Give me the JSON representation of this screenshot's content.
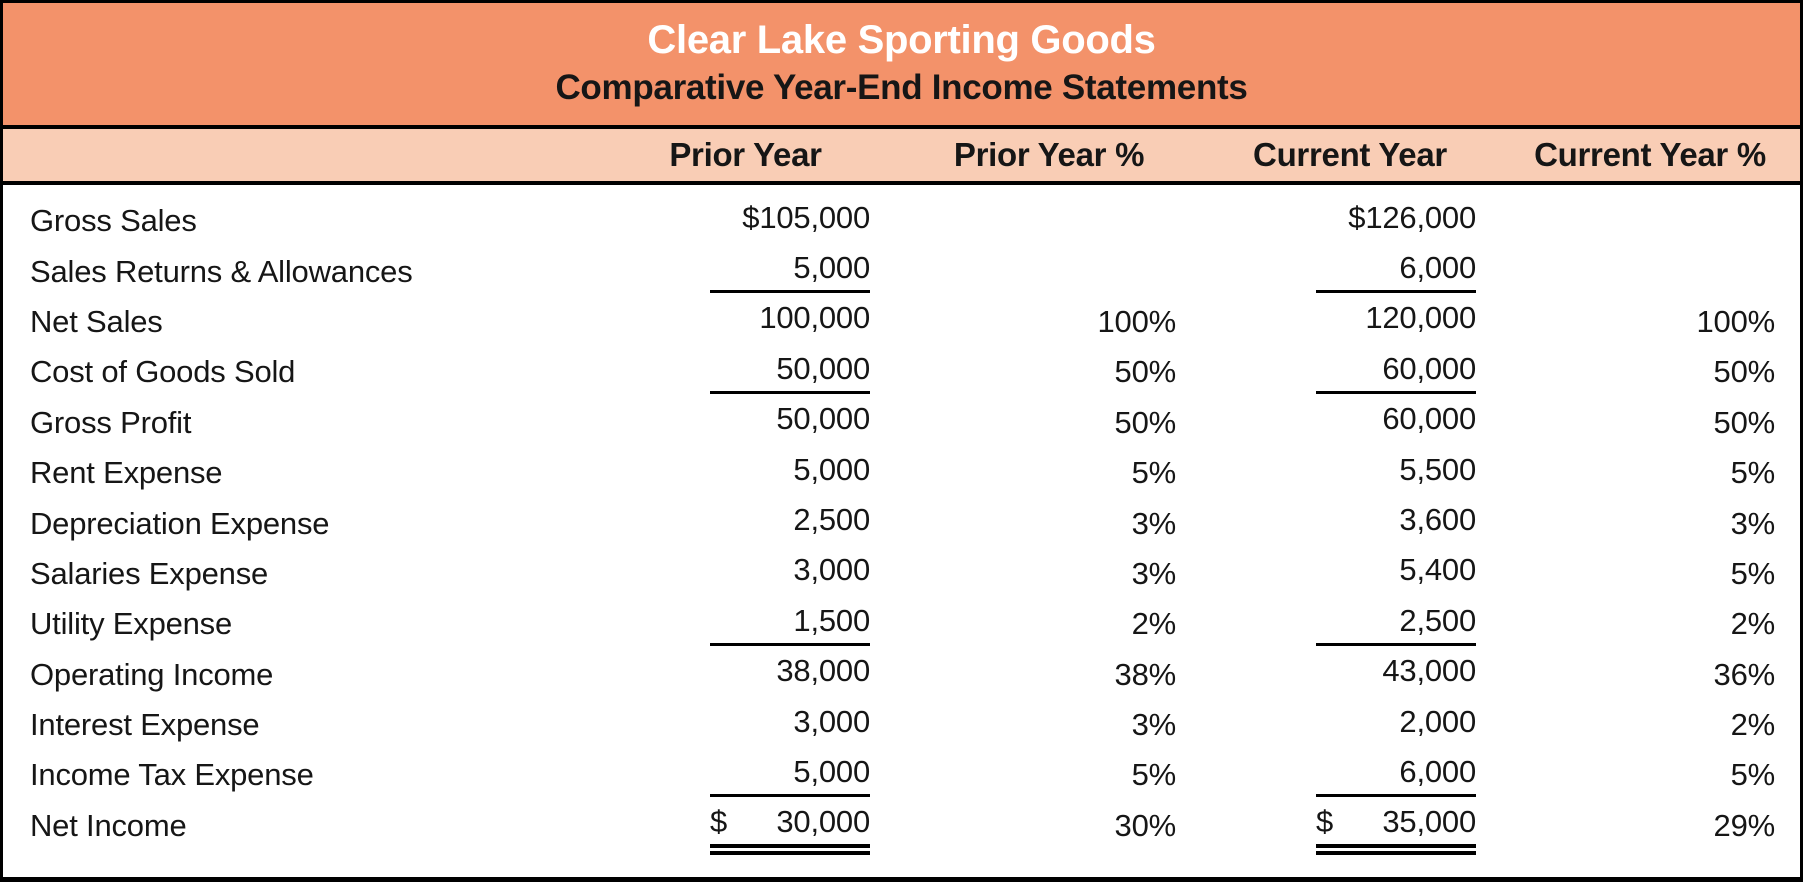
{
  "title": "Clear Lake Sporting Goods",
  "subtitle": "Comparative Year-End Income Statements",
  "columns": {
    "prior": "Prior Year",
    "prior_pct": "Prior Year %",
    "current": "Current Year",
    "current_pct": "Current Year %"
  },
  "colors": {
    "title_band_bg": "#F3926A",
    "column_band_bg": "#F9CDB5",
    "title_text": "#FFFFFF",
    "body_text": "#161616",
    "border": "#000000",
    "body_bg": "#FFFFFF"
  },
  "rows": [
    {
      "label": "Gross Sales",
      "prior_dollar": "",
      "prior": "$105,000",
      "prior_pct": "",
      "current_dollar": "",
      "current": "$126,000",
      "current_pct": "",
      "underline": "none"
    },
    {
      "label": "Sales Returns & Allowances",
      "prior_dollar": "",
      "prior": "5,000",
      "prior_pct": "",
      "current_dollar": "",
      "current": "6,000",
      "current_pct": "",
      "underline": "single"
    },
    {
      "label": "Net Sales",
      "prior_dollar": "",
      "prior": "100,000",
      "prior_pct": "100%",
      "current_dollar": "",
      "current": "120,000",
      "current_pct": "100%",
      "underline": "none"
    },
    {
      "label": "Cost of Goods Sold",
      "prior_dollar": "",
      "prior": "50,000",
      "prior_pct": "50%",
      "current_dollar": "",
      "current": "60,000",
      "current_pct": "50%",
      "underline": "single"
    },
    {
      "label": "Gross Profit",
      "prior_dollar": "",
      "prior": "50,000",
      "prior_pct": "50%",
      "current_dollar": "",
      "current": "60,000",
      "current_pct": "50%",
      "underline": "none"
    },
    {
      "label": "Rent Expense",
      "prior_dollar": "",
      "prior": "5,000",
      "prior_pct": "5%",
      "current_dollar": "",
      "current": "5,500",
      "current_pct": "5%",
      "underline": "none"
    },
    {
      "label": "Depreciation Expense",
      "prior_dollar": "",
      "prior": "2,500",
      "prior_pct": "3%",
      "current_dollar": "",
      "current": "3,600",
      "current_pct": "3%",
      "underline": "none"
    },
    {
      "label": "Salaries Expense",
      "prior_dollar": "",
      "prior": "3,000",
      "prior_pct": "3%",
      "current_dollar": "",
      "current": "5,400",
      "current_pct": "5%",
      "underline": "none"
    },
    {
      "label": "Utility Expense",
      "prior_dollar": "",
      "prior": "1,500",
      "prior_pct": "2%",
      "current_dollar": "",
      "current": "2,500",
      "current_pct": "2%",
      "underline": "single"
    },
    {
      "label": "Operating Income",
      "prior_dollar": "",
      "prior": "38,000",
      "prior_pct": "38%",
      "current_dollar": "",
      "current": "43,000",
      "current_pct": "36%",
      "underline": "none"
    },
    {
      "label": "Interest Expense",
      "prior_dollar": "",
      "prior": "3,000",
      "prior_pct": "3%",
      "current_dollar": "",
      "current": "2,000",
      "current_pct": "2%",
      "underline": "none"
    },
    {
      "label": "Income Tax Expense",
      "prior_dollar": "",
      "prior": "5,000",
      "prior_pct": "5%",
      "current_dollar": "",
      "current": "6,000",
      "current_pct": "5%",
      "underline": "single"
    },
    {
      "label": "Net Income",
      "prior_dollar": "$",
      "prior": "30,000",
      "prior_pct": "30%",
      "current_dollar": "$",
      "current": "35,000",
      "current_pct": "29%",
      "underline": "double"
    }
  ]
}
